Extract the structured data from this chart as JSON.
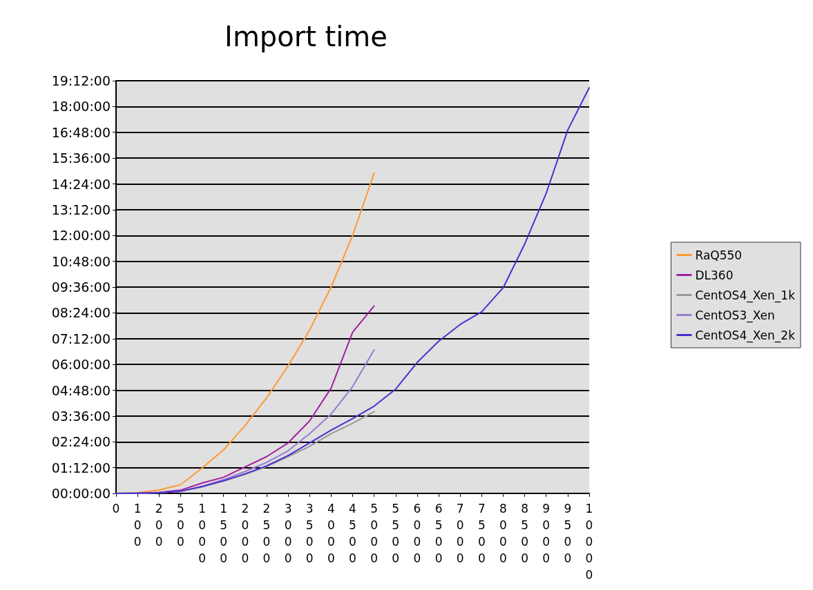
{
  "chart_data": {
    "type": "line",
    "title": "Import time",
    "categories": [
      "0",
      "100",
      "200",
      "500",
      "1000",
      "1500",
      "2000",
      "2500",
      "3000",
      "3500",
      "4000",
      "4500",
      "5000",
      "5500",
      "6000",
      "6500",
      "7000",
      "7500",
      "8000",
      "8500",
      "9000",
      "9500",
      "10000"
    ],
    "series": [
      {
        "name": "RaQ550",
        "color": "#ff9933",
        "values": [
          0,
          0.03,
          0.16,
          0.4,
          1.18,
          2.03,
          3.16,
          4.44,
          5.94,
          7.6,
          9.6,
          12.0,
          14.9,
          null,
          null,
          null,
          null,
          null,
          null,
          null,
          null,
          null,
          null
        ]
      },
      {
        "name": "DL360",
        "color": "#a020a0",
        "values": [
          0,
          0.01,
          0.05,
          0.15,
          0.48,
          0.75,
          1.23,
          1.71,
          2.35,
          3.37,
          4.9,
          7.5,
          8.72,
          null,
          null,
          null,
          null,
          null,
          null,
          null,
          null,
          null,
          null
        ]
      },
      {
        "name": "CentOS4_Xen_1k",
        "color": "#999999",
        "values": [
          0,
          0.01,
          0.03,
          0.1,
          0.3,
          0.57,
          0.88,
          1.25,
          1.71,
          2.19,
          2.78,
          3.26,
          3.8,
          null,
          null,
          null,
          null,
          null,
          null,
          null,
          null,
          null,
          null
        ]
      },
      {
        "name": "CentOS3_Xen",
        "color": "#9a7ad0",
        "values": [
          0,
          0.01,
          0.03,
          0.1,
          0.32,
          0.64,
          1.02,
          1.44,
          1.98,
          2.78,
          3.69,
          4.97,
          6.68,
          null,
          null,
          null,
          null,
          null,
          null,
          null,
          null,
          null,
          null
        ]
      },
      {
        "name": "CentOS4_Xen_2k",
        "color": "#4a2fd0",
        "values": [
          0,
          0.01,
          0.03,
          0.1,
          0.32,
          0.59,
          0.91,
          1.28,
          1.76,
          2.35,
          2.94,
          3.48,
          4.06,
          4.85,
          6.09,
          7.08,
          7.86,
          8.45,
          9.57,
          11.6,
          13.96,
          16.9,
          18.87
        ]
      }
    ],
    "ylim": [
      0,
      19.2
    ],
    "yticks": [
      {
        "value": 0,
        "label": "00:00:00"
      },
      {
        "value": 1.2,
        "label": "01:12:00"
      },
      {
        "value": 2.4,
        "label": "02:24:00"
      },
      {
        "value": 3.6,
        "label": "03:36:00"
      },
      {
        "value": 4.8,
        "label": "04:48:00"
      },
      {
        "value": 6,
        "label": "06:00:00"
      },
      {
        "value": 7.2,
        "label": "07:12:00"
      },
      {
        "value": 8.4,
        "label": "08:24:00"
      },
      {
        "value": 9.6,
        "label": "09:36:00"
      },
      {
        "value": 10.8,
        "label": "10:48:00"
      },
      {
        "value": 12,
        "label": "12:00:00"
      },
      {
        "value": 13.2,
        "label": "13:12:00"
      },
      {
        "value": 14.4,
        "label": "14:24:00"
      },
      {
        "value": 15.6,
        "label": "15:36:00"
      },
      {
        "value": 16.8,
        "label": "16:48:00"
      },
      {
        "value": 18,
        "label": "18:00:00"
      },
      {
        "value": 19.2,
        "label": "19:12:00"
      }
    ],
    "grid": "y",
    "legend": "right",
    "marker": "none",
    "line_style": "solid"
  }
}
